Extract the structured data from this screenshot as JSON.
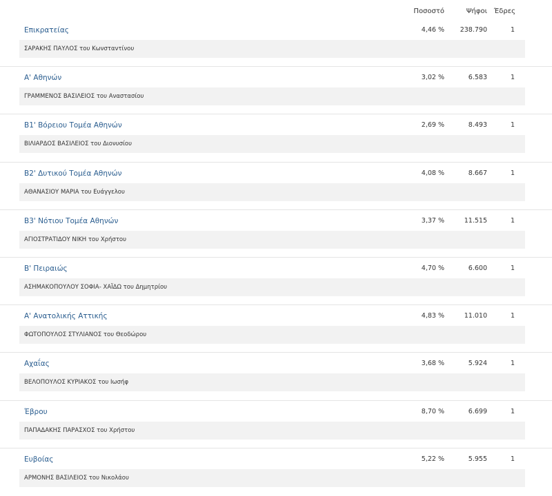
{
  "header": {
    "percent_label": "Ποσοστό",
    "votes_label": "Ψήφοι",
    "seats_label": "Έδρες"
  },
  "rows": [
    {
      "district": "Επικρατείας",
      "percent": "4,46 %",
      "votes": "238.790",
      "seats": "1",
      "candidate": "ΣΑΡΑΚΗΣ ΠΑΥΛΟΣ του Κωνσταντίνου"
    },
    {
      "district": "Α' Αθηνών",
      "percent": "3,02 %",
      "votes": "6.583",
      "seats": "1",
      "candidate": "ΓΡΑΜΜΕΝΟΣ ΒΑΣΙΛΕΙΟΣ του Αναστασίου"
    },
    {
      "district": "Β1' Βόρειου Τομέα Αθηνών",
      "percent": "2,69 %",
      "votes": "8.493",
      "seats": "1",
      "candidate": "ΒΙΛΙΑΡΔΟΣ ΒΑΣΙΛΕΙΟΣ του Διονυσίου"
    },
    {
      "district": "Β2' Δυτικού Τομέα Αθηνών",
      "percent": "4,08 %",
      "votes": "8.667",
      "seats": "1",
      "candidate": "ΑΘΑΝΑΣΙΟΥ ΜΑΡΙΑ του Ευάγγελου"
    },
    {
      "district": "Β3' Νότιου Τομέα Αθηνών",
      "percent": "3,37 %",
      "votes": "11.515",
      "seats": "1",
      "candidate": "ΑΓΙΟΣΤΡΑΤΙΔΟΥ ΝΙΚΗ του Χρήστου"
    },
    {
      "district": "Β' Πειραιώς",
      "percent": "4,70 %",
      "votes": "6.600",
      "seats": "1",
      "candidate": "ΑΣΗΜΑΚΟΠΟΥΛΟΥ ΣΟΦΙΑ- ΧΑΪΔΩ του Δημητρίου"
    },
    {
      "district": "Α' Ανατολικής Αττικής",
      "percent": "4,83 %",
      "votes": "11.010",
      "seats": "1",
      "candidate": "ΦΩΤΟΠΟΥΛΟΣ ΣΤΥΛΙΑΝΟΣ του Θεοδώρου"
    },
    {
      "district": "Αχαΐας",
      "percent": "3,68 %",
      "votes": "5.924",
      "seats": "1",
      "candidate": "ΒΕΛΟΠΟΥΛΟΣ ΚΥΡΙΑΚΟΣ του Ιωσήφ"
    },
    {
      "district": "Έβρου",
      "percent": "8,70 %",
      "votes": "6.699",
      "seats": "1",
      "candidate": "ΠΑΠΑΔΑΚΗΣ ΠΑΡΑΣΧΟΣ του Χρήστου"
    },
    {
      "district": "Ευβοίας",
      "percent": "5,22 %",
      "votes": "5.955",
      "seats": "1",
      "candidate": "ΑΡΜΟΝΗΣ ΒΑΣΙΛΕΙΟΣ του Νικολάου"
    }
  ],
  "colors": {
    "link": "#2a5d8f",
    "candidate_bar": "#f2f2f2",
    "divider": "#e4e4e4"
  }
}
